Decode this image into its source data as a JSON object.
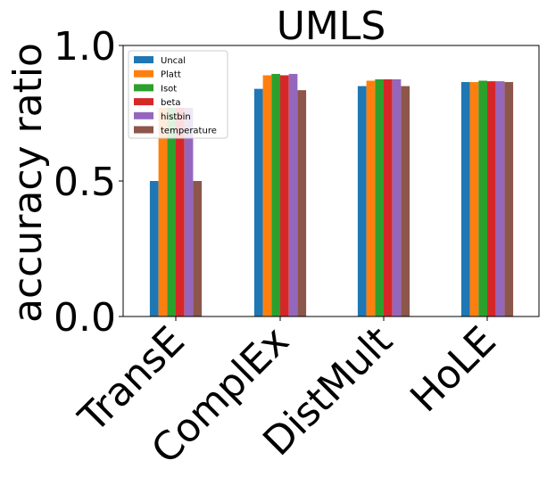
{
  "chart_data": {
    "type": "bar",
    "title": "UMLS",
    "xlabel": "",
    "ylabel": "accuracy ratio",
    "ylim": [
      0.0,
      1.0
    ],
    "yticks": [
      "0.0",
      "0.5",
      "1.0"
    ],
    "categories": [
      "TransE",
      "ComplEx",
      "DistMult",
      "HoLE"
    ],
    "series": [
      {
        "name": "Uncal",
        "color": "#1f77b4",
        "values": [
          0.5,
          0.84,
          0.85,
          0.865
        ]
      },
      {
        "name": "Platt",
        "color": "#ff7f0e",
        "values": [
          0.77,
          0.89,
          0.87,
          0.865
        ]
      },
      {
        "name": "Isot",
        "color": "#2ca02c",
        "values": [
          0.77,
          0.895,
          0.875,
          0.87
        ]
      },
      {
        "name": "beta",
        "color": "#d62728",
        "values": [
          0.77,
          0.89,
          0.875,
          0.868
        ]
      },
      {
        "name": "histbin",
        "color": "#9467bd",
        "values": [
          0.77,
          0.895,
          0.875,
          0.868
        ]
      },
      {
        "name": "temperature",
        "color": "#8c564b",
        "values": [
          0.5,
          0.835,
          0.85,
          0.865
        ]
      }
    ],
    "legend_position": "top-left",
    "grid": false
  }
}
